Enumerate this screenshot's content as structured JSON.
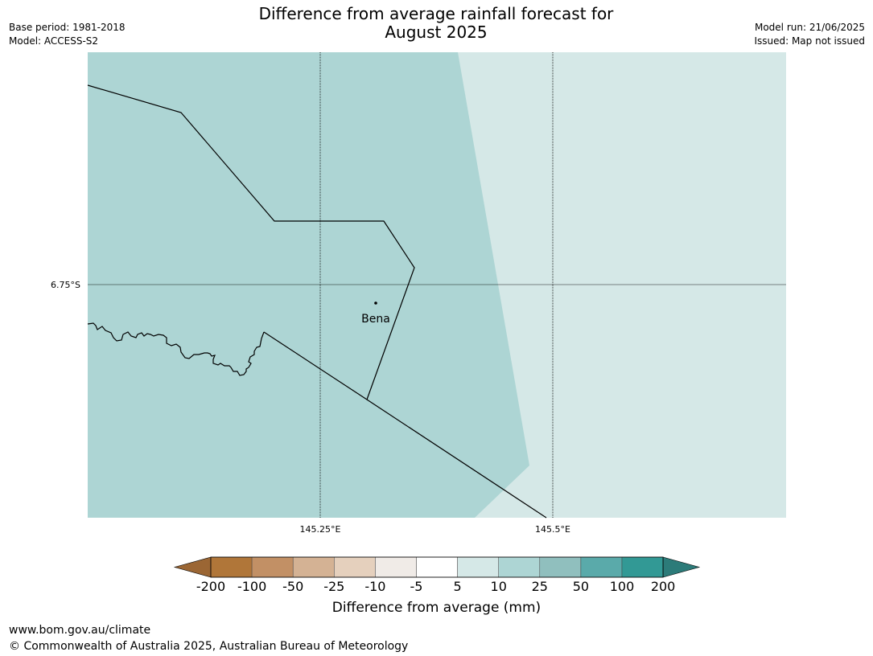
{
  "header": {
    "title_line1": "Difference from average rainfall forecast for",
    "title_line2": "August 2025",
    "base_period": "Base period: 1981-2018",
    "model": "Model: ACCESS-S2",
    "model_run": "Model run: 21/06/2025",
    "issued": "Issued: Map not issued"
  },
  "map": {
    "place_name": "Bena",
    "lat_label": "6.75°S",
    "lon_labels": [
      "145.25°E",
      "145.5°E"
    ],
    "colors": {
      "class_5_10": "#d5e8e7",
      "class_10_25": "#add5d4",
      "border": "#000000",
      "graticule": "#000000"
    }
  },
  "colorbar": {
    "title": "Difference from average (mm)",
    "labels": [
      "-200",
      "-100",
      "-50",
      "-25",
      "-10",
      "-5",
      "5",
      "10",
      "25",
      "50",
      "100",
      "200"
    ],
    "colors": [
      "#9b6634",
      "#b07639",
      "#c29065",
      "#d4b294",
      "#e5d0bd",
      "#f0ebe7",
      "#ffffff",
      "#d5e8e7",
      "#add5d4",
      "#90bfbe",
      "#5aaaaa",
      "#329995",
      "#2c7b79"
    ]
  },
  "footer": {
    "url": "www.bom.gov.au/climate",
    "copyright": "© Commonwealth of Australia 2025, Australian Bureau of Meteorology"
  }
}
